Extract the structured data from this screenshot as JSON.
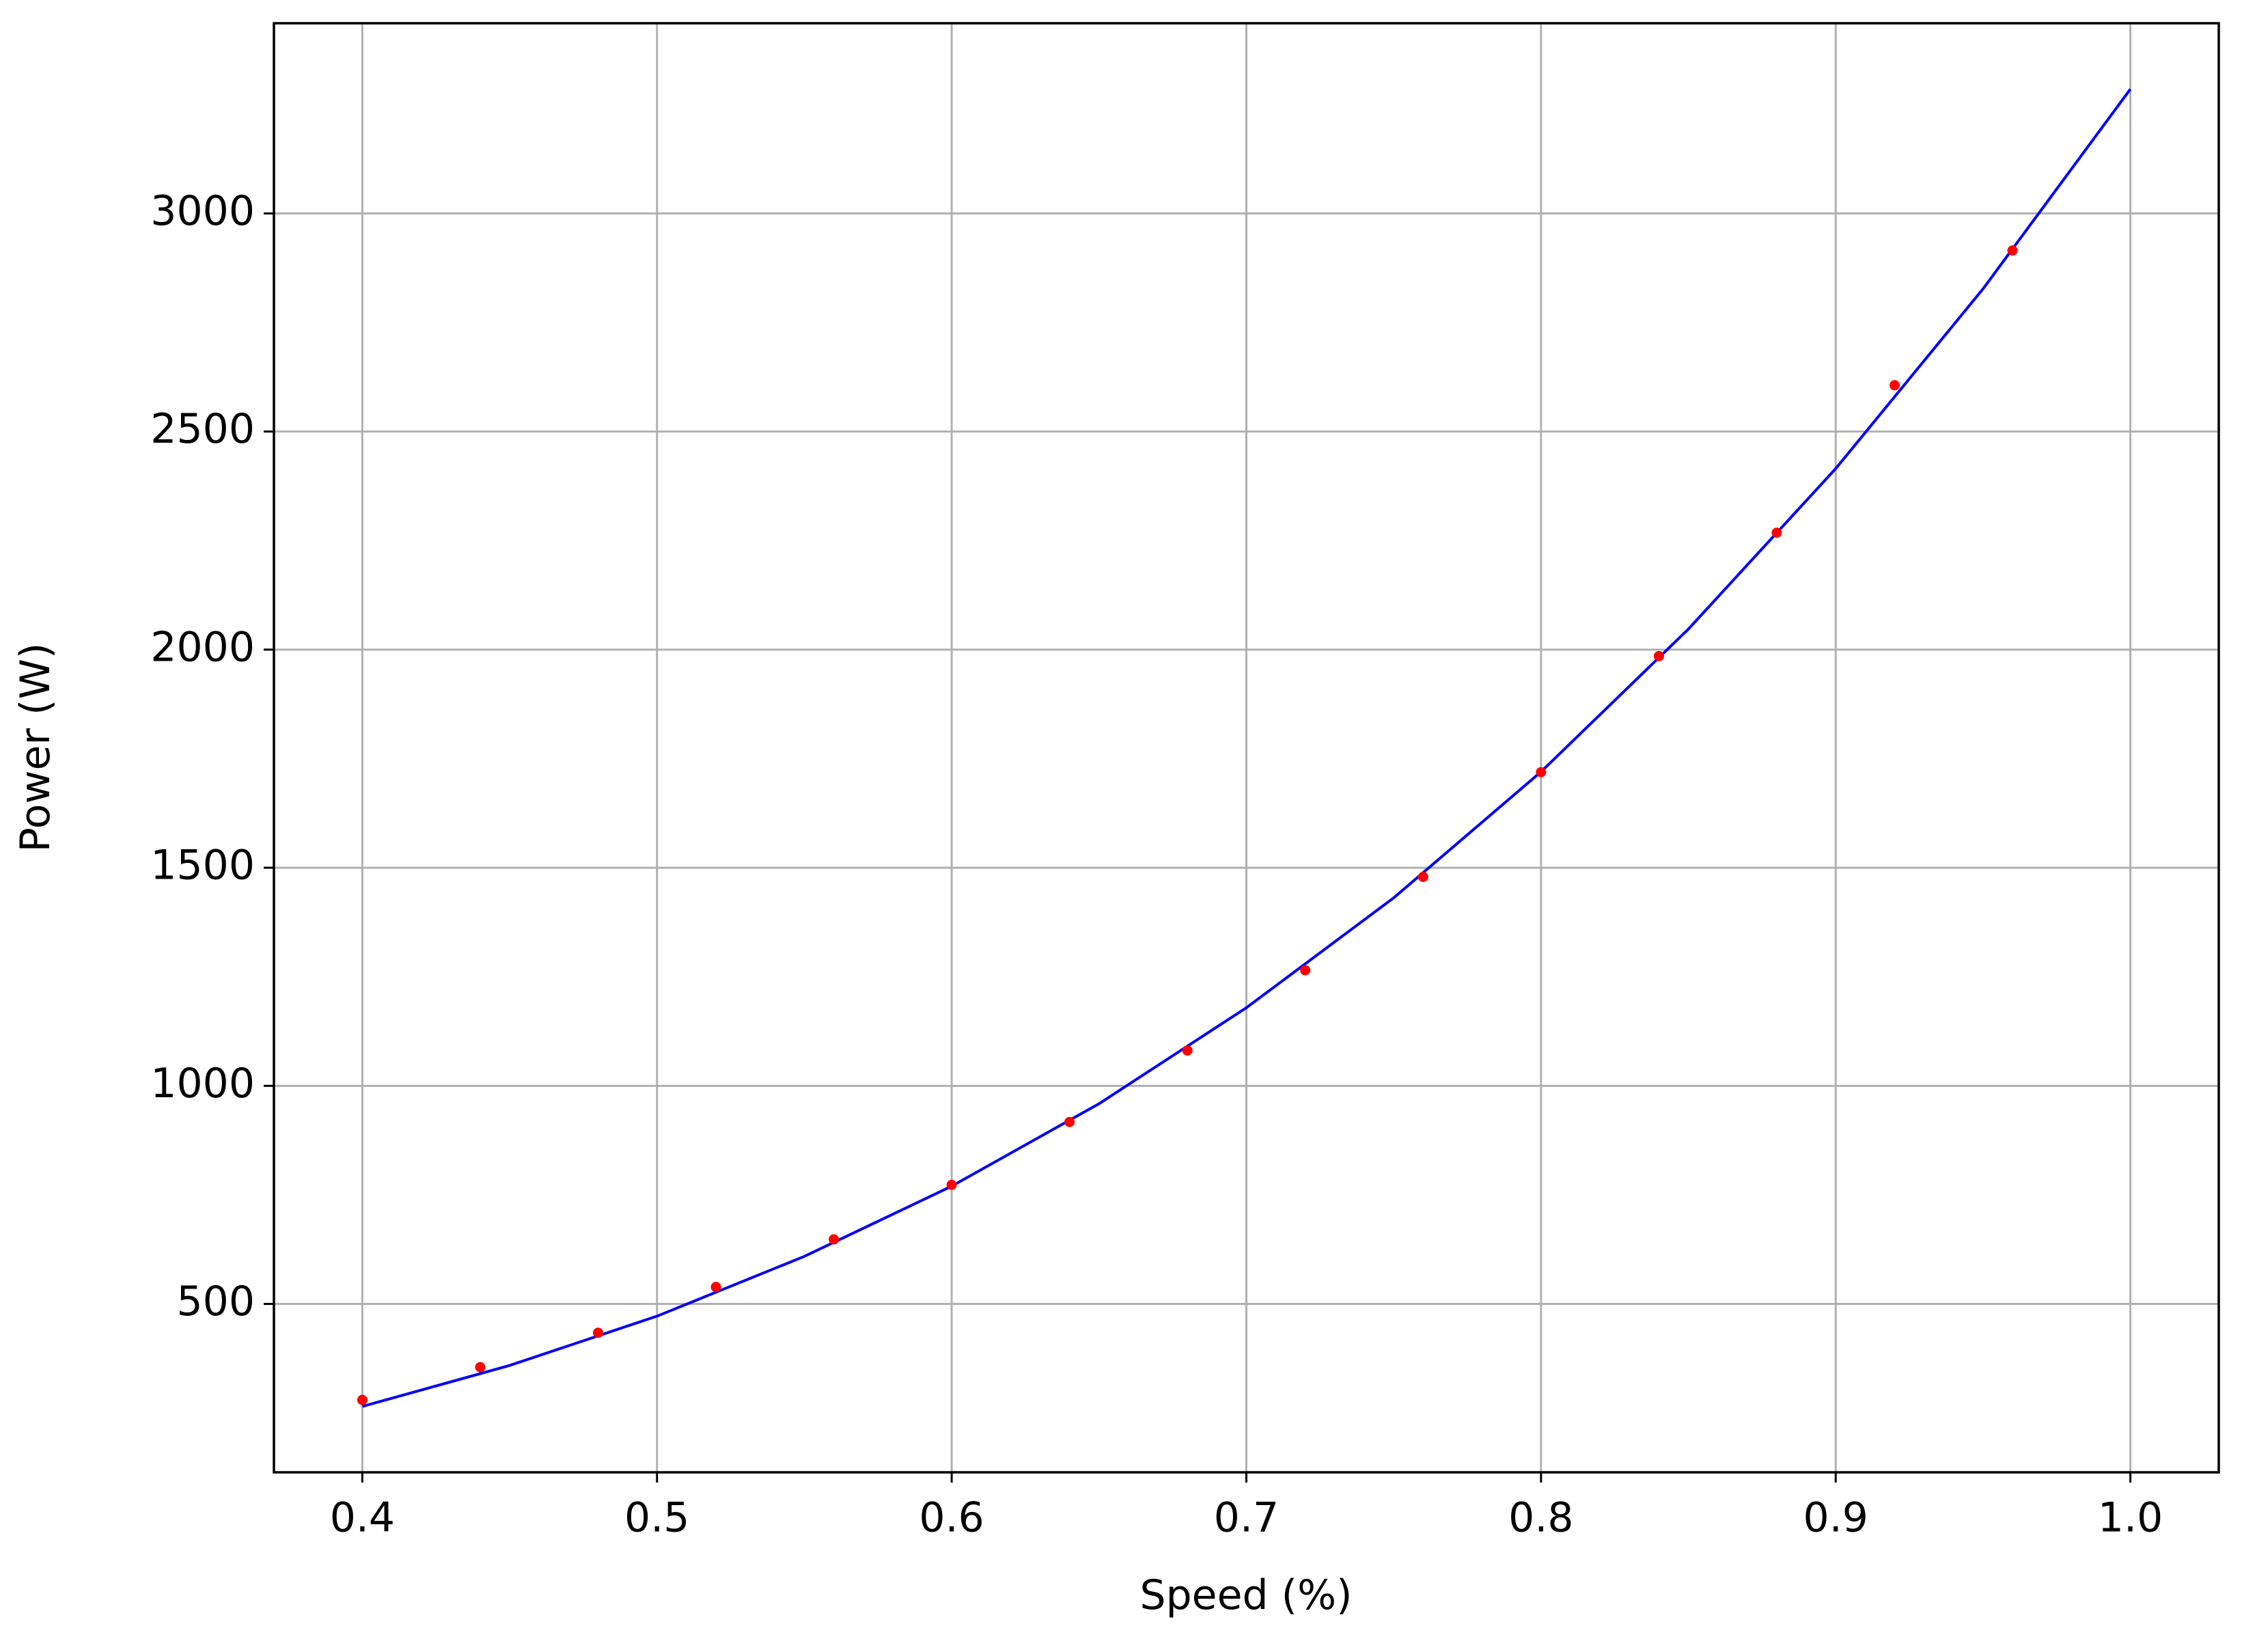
{
  "chart_data": {
    "type": "line",
    "xlabel": "Speed (%)",
    "ylabel": "Power (W)",
    "series": [
      {
        "color": "#0000ff",
        "style": "line",
        "x": [
          0.4,
          0.45,
          0.5,
          0.55,
          0.6,
          0.65,
          0.7,
          0.75,
          0.8,
          0.85,
          0.9,
          0.95,
          1.0
        ],
        "values": [
          265,
          359,
          472,
          609,
          770,
          959,
          1179,
          1431,
          1720,
          2047,
          2415,
          2827,
          3285
        ]
      },
      {
        "color": "#ff0000",
        "style": "markers",
        "x": [
          0.4,
          0.44,
          0.48,
          0.52,
          0.56,
          0.6,
          0.64,
          0.68,
          0.72,
          0.76,
          0.8,
          0.84,
          0.88,
          0.92,
          0.96
        ],
        "values": [
          280,
          355,
          434,
          539,
          648,
          773,
          917,
          1081,
          1265,
          1479,
          1719,
          1985,
          2268,
          2606,
          2915
        ]
      }
    ],
    "xlim": [
      0.37,
      1.03
    ],
    "ylim": [
      114,
      3436
    ],
    "xticks": [
      0.4,
      0.5,
      0.6,
      0.7,
      0.8,
      0.9,
      {
        "value": 1,
        "label": "1.0"
      }
    ],
    "yticks": [
      500,
      1000,
      1500,
      2000,
      2500,
      3000
    ],
    "grid": true
  }
}
